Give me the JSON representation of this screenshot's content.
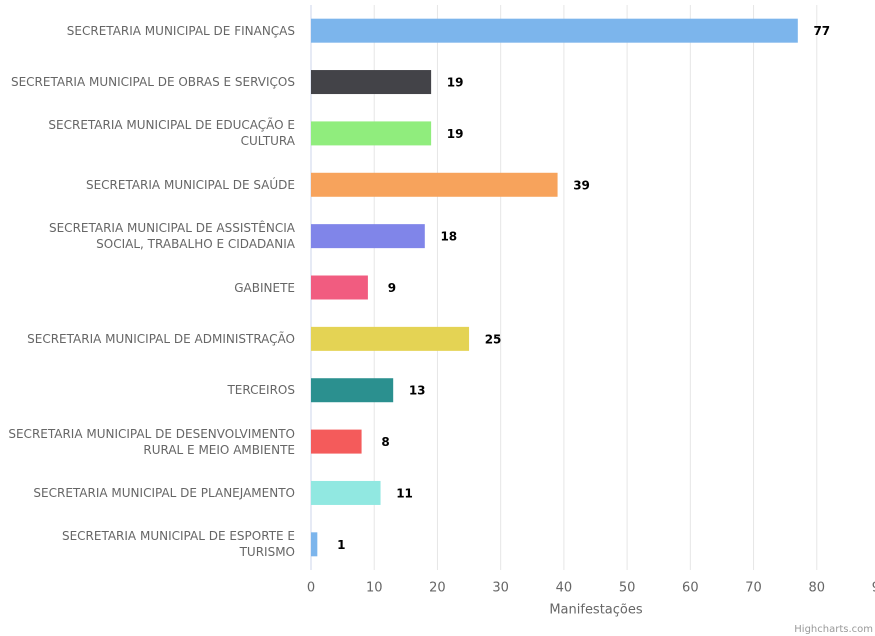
{
  "chart_data": {
    "type": "bar",
    "categories": [
      "SECRETARIA MUNICIPAL DE FINANÇAS",
      "SECRETARIA MUNICIPAL DE OBRAS E SERVIÇOS",
      "SECRETARIA MUNICIPAL DE EDUCAÇÃO E CULTURA",
      "SECRETARIA MUNICIPAL DE SAÚDE",
      "SECRETARIA MUNICIPAL DE ASSISTÊNCIA SOCIAL, TRABALHO E CIDADANIA",
      "GABINETE",
      "SECRETARIA MUNICIPAL DE ADMINISTRAÇÃO",
      "TERCEIROS",
      "SECRETARIA MUNICIPAL DE DESENVOLVIMENTO RURAL E MEIO AMBIENTE",
      "SECRETARIA MUNICIPAL DE PLANEJAMENTO",
      "SECRETARIA MUNICIPAL DE ESPORTE E TURISMO"
    ],
    "values": [
      77,
      19,
      19,
      39,
      18,
      9,
      25,
      13,
      8,
      11,
      1
    ],
    "colors": [
      "#7cb5ec",
      "#434348",
      "#90ed7d",
      "#f7a35c",
      "#8085e9",
      "#f15c80",
      "#e4d354",
      "#2b908f",
      "#f45b5b",
      "#91e8e1",
      "#7cb5ec"
    ],
    "xlabel": "Manifestações",
    "xlim": [
      0,
      90
    ],
    "xticks": [
      0,
      10,
      20,
      30,
      40,
      50,
      60,
      70,
      80,
      90
    ],
    "grid": true,
    "credits": "Highcharts.com"
  }
}
